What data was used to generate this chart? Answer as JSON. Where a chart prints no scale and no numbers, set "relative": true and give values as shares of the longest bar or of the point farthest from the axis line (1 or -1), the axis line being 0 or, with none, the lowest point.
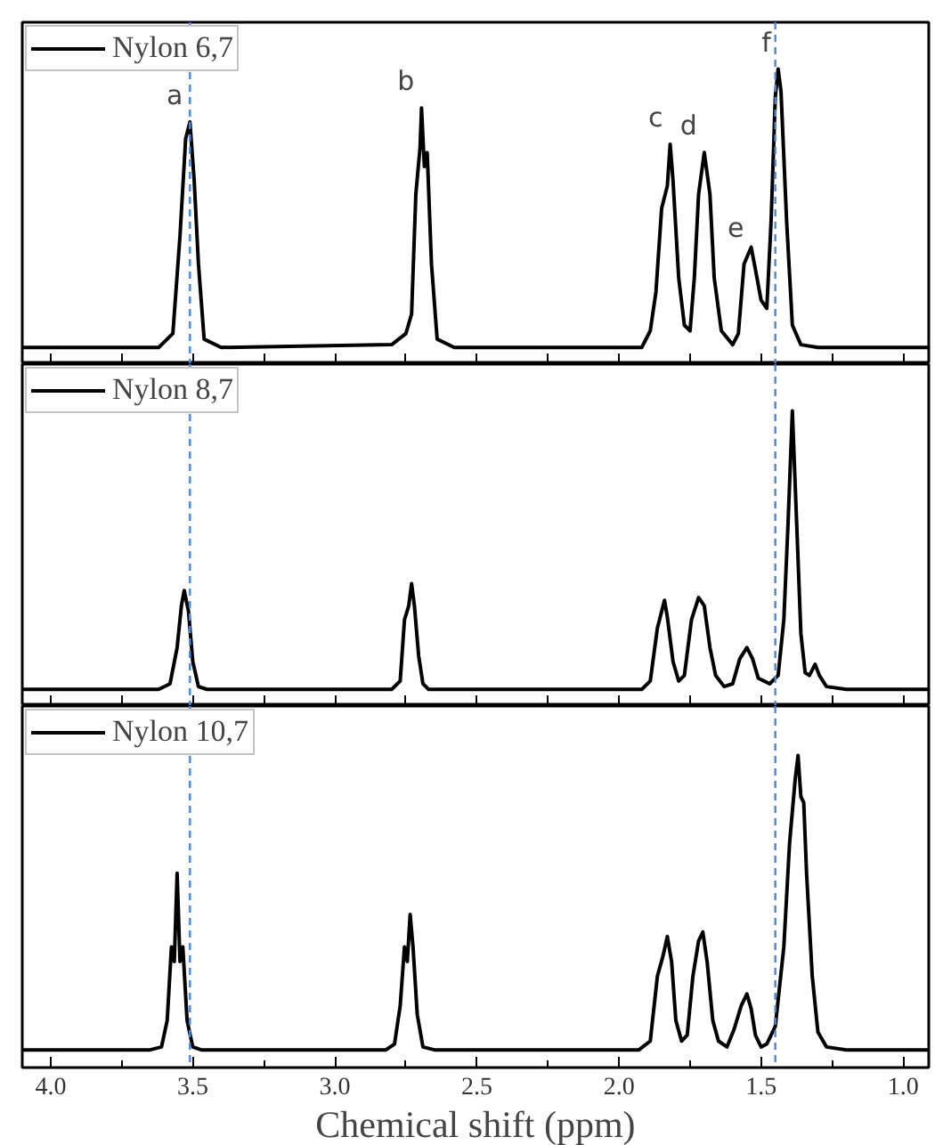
{
  "chart_data": [
    {
      "type": "line",
      "relative": true,
      "xlim": [
        4.1,
        0.91
      ],
      "tick_labels": false,
      "legend": "top left",
      "grid": false,
      "xticks": [
        {
          "value": 4.0,
          "label": null
        },
        {
          "value": 3.75,
          "label": null
        },
        {
          "value": 3.5,
          "label": null
        },
        {
          "value": 3.25,
          "label": null
        },
        {
          "value": 3.0,
          "label": null
        },
        {
          "value": 2.75,
          "label": null
        },
        {
          "value": 2.5,
          "label": null
        },
        {
          "value": 2.25,
          "label": null
        },
        {
          "value": 2.0,
          "label": null
        },
        {
          "value": 1.75,
          "label": null
        },
        {
          "value": 1.5,
          "label": null
        },
        {
          "value": 1.25,
          "label": null
        },
        {
          "value": 1.0,
          "label": null
        }
      ],
      "series": [
        {
          "name": "Nylon 6,7",
          "color": "#000000",
          "x": [
            4.1,
            3.62,
            3.57,
            3.545,
            3.525,
            3.51,
            3.495,
            3.48,
            3.46,
            3.4,
            2.8,
            2.75,
            2.73,
            2.715,
            2.7,
            2.695,
            2.685,
            2.675,
            2.66,
            2.64,
            2.58,
            1.92,
            1.89,
            1.87,
            1.85,
            1.83,
            1.82,
            1.81,
            1.79,
            1.77,
            1.75,
            1.735,
            1.72,
            1.7,
            1.68,
            1.665,
            1.64,
            1.6,
            1.58,
            1.56,
            1.535,
            1.52,
            1.5,
            1.48,
            1.465,
            1.45,
            1.44,
            1.43,
            1.41,
            1.39,
            1.36,
            1.3,
            0.91
          ],
          "values": [
            0,
            0,
            0.05,
            0.4,
            0.75,
            0.81,
            0.6,
            0.3,
            0.03,
            0,
            0.01,
            0.05,
            0.12,
            0.55,
            0.72,
            0.86,
            0.65,
            0.7,
            0.3,
            0.03,
            0,
            0,
            0.06,
            0.2,
            0.5,
            0.58,
            0.73,
            0.6,
            0.25,
            0.08,
            0.06,
            0.25,
            0.55,
            0.7,
            0.55,
            0.25,
            0.06,
            0.01,
            0.05,
            0.3,
            0.36,
            0.28,
            0.17,
            0.14,
            0.45,
            0.9,
            1.0,
            0.92,
            0.45,
            0.08,
            0.01,
            0,
            0
          ]
        }
      ],
      "ref_lines": [
        {
          "axis": "x",
          "value": 3.51,
          "color": "#4a86e8",
          "line_style": "dashed"
        },
        {
          "axis": "x",
          "value": 1.45,
          "color": "#4a86e8",
          "line_style": "dashed"
        }
      ],
      "annotations": [
        {
          "text": "a",
          "x": 3.51,
          "y": 0.81
        },
        {
          "text": "b",
          "x": 2.695,
          "y": 0.86
        },
        {
          "text": "c",
          "x": 1.82,
          "y": 0.73
        },
        {
          "text": "d",
          "x": 1.7,
          "y": 0.7
        },
        {
          "text": "e",
          "x": 1.535,
          "y": 0.36
        },
        {
          "text": "f",
          "x": 1.44,
          "y": 1.0
        }
      ]
    },
    {
      "type": "line",
      "relative": true,
      "xlim": [
        4.1,
        0.91
      ],
      "tick_labels": false,
      "legend": "top left",
      "grid": false,
      "xticks": [
        {
          "value": 4.0,
          "label": null
        },
        {
          "value": 3.75,
          "label": null
        },
        {
          "value": 3.5,
          "label": null
        },
        {
          "value": 3.25,
          "label": null
        },
        {
          "value": 3.0,
          "label": null
        },
        {
          "value": 2.75,
          "label": null
        },
        {
          "value": 2.5,
          "label": null
        },
        {
          "value": 2.25,
          "label": null
        },
        {
          "value": 2.0,
          "label": null
        },
        {
          "value": 1.75,
          "label": null
        },
        {
          "value": 1.5,
          "label": null
        },
        {
          "value": 1.25,
          "label": null
        },
        {
          "value": 1.0,
          "label": null
        }
      ],
      "series": [
        {
          "name": "Nylon 8,7",
          "color": "#000000",
          "x": [
            4.1,
            3.62,
            3.58,
            3.555,
            3.54,
            3.53,
            3.515,
            3.5,
            3.48,
            3.45,
            2.8,
            2.77,
            2.755,
            2.74,
            2.73,
            2.72,
            2.705,
            2.69,
            2.67,
            2.6,
            1.92,
            1.89,
            1.865,
            1.85,
            1.84,
            1.83,
            1.81,
            1.79,
            1.77,
            1.745,
            1.72,
            1.7,
            1.68,
            1.66,
            1.63,
            1.6,
            1.575,
            1.55,
            1.53,
            1.51,
            1.47,
            1.44,
            1.42,
            1.405,
            1.39,
            1.375,
            1.36,
            1.345,
            1.33,
            1.31,
            1.295,
            1.27,
            1.2,
            0.91
          ],
          "values": [
            0,
            0,
            0.02,
            0.15,
            0.3,
            0.355,
            0.28,
            0.1,
            0.01,
            0,
            0,
            0.03,
            0.25,
            0.3,
            0.38,
            0.3,
            0.12,
            0.02,
            0,
            0,
            0,
            0.03,
            0.22,
            0.28,
            0.32,
            0.26,
            0.1,
            0.03,
            0.05,
            0.25,
            0.33,
            0.3,
            0.15,
            0.05,
            0.01,
            0.02,
            0.11,
            0.15,
            0.11,
            0.04,
            0.02,
            0.05,
            0.25,
            0.6,
            1.0,
            0.6,
            0.2,
            0.06,
            0.05,
            0.09,
            0.05,
            0.01,
            0,
            0
          ]
        }
      ],
      "ref_lines": [
        {
          "axis": "x",
          "value": 3.51,
          "color": "#4a86e8",
          "line_style": "dashed"
        },
        {
          "axis": "x",
          "value": 1.45,
          "color": "#4a86e8",
          "line_style": "dashed"
        }
      ]
    },
    {
      "type": "line",
      "relative": true,
      "xlim": [
        4.1,
        0.91
      ],
      "tick_labels": "x",
      "legend": "top left",
      "grid": false,
      "xlabel": "Chemical shift (ppm)",
      "xticks": [
        {
          "value": 4.0,
          "label": "4.0"
        },
        {
          "value": 3.75,
          "label": null
        },
        {
          "value": 3.5,
          "label": "3.5"
        },
        {
          "value": 3.25,
          "label": null
        },
        {
          "value": 3.0,
          "label": "3.0"
        },
        {
          "value": 2.75,
          "label": null
        },
        {
          "value": 2.5,
          "label": "2.5"
        },
        {
          "value": 2.25,
          "label": null
        },
        {
          "value": 2.0,
          "label": "2.0"
        },
        {
          "value": 1.75,
          "label": null
        },
        {
          "value": 1.5,
          "label": "1.5"
        },
        {
          "value": 1.25,
          "label": null
        },
        {
          "value": 1.0,
          "label": "1.0"
        }
      ],
      "series": [
        {
          "name": "Nylon 10,7",
          "color": "#000000",
          "x": [
            4.1,
            3.65,
            3.61,
            3.59,
            3.575,
            3.565,
            3.555,
            3.545,
            3.535,
            3.52,
            3.5,
            3.47,
            2.82,
            2.79,
            2.77,
            2.755,
            2.745,
            2.735,
            2.725,
            2.71,
            2.69,
            2.65,
            1.93,
            1.89,
            1.865,
            1.845,
            1.83,
            1.815,
            1.8,
            1.78,
            1.76,
            1.74,
            1.72,
            1.705,
            1.69,
            1.67,
            1.65,
            1.62,
            1.595,
            1.57,
            1.55,
            1.535,
            1.52,
            1.5,
            1.48,
            1.45,
            1.42,
            1.4,
            1.38,
            1.37,
            1.36,
            1.35,
            1.34,
            1.32,
            1.3,
            1.27,
            1.2,
            0.91
          ],
          "values": [
            0,
            0,
            0.01,
            0.1,
            0.35,
            0.3,
            0.6,
            0.3,
            0.35,
            0.1,
            0.01,
            0,
            0,
            0.02,
            0.15,
            0.35,
            0.3,
            0.46,
            0.35,
            0.12,
            0.01,
            0,
            0,
            0.03,
            0.25,
            0.32,
            0.385,
            0.3,
            0.1,
            0.03,
            0.05,
            0.25,
            0.37,
            0.4,
            0.3,
            0.1,
            0.03,
            0.01,
            0.07,
            0.15,
            0.19,
            0.14,
            0.05,
            0.01,
            0.02,
            0.08,
            0.35,
            0.7,
            0.92,
            1.0,
            0.86,
            0.84,
            0.6,
            0.25,
            0.06,
            0.01,
            0,
            0
          ]
        }
      ],
      "ref_lines": [
        {
          "axis": "x",
          "value": 3.51,
          "color": "#4a86e8",
          "line_style": "dashed"
        },
        {
          "axis": "x",
          "value": 1.45,
          "color": "#4a86e8",
          "line_style": "dashed"
        }
      ]
    }
  ]
}
